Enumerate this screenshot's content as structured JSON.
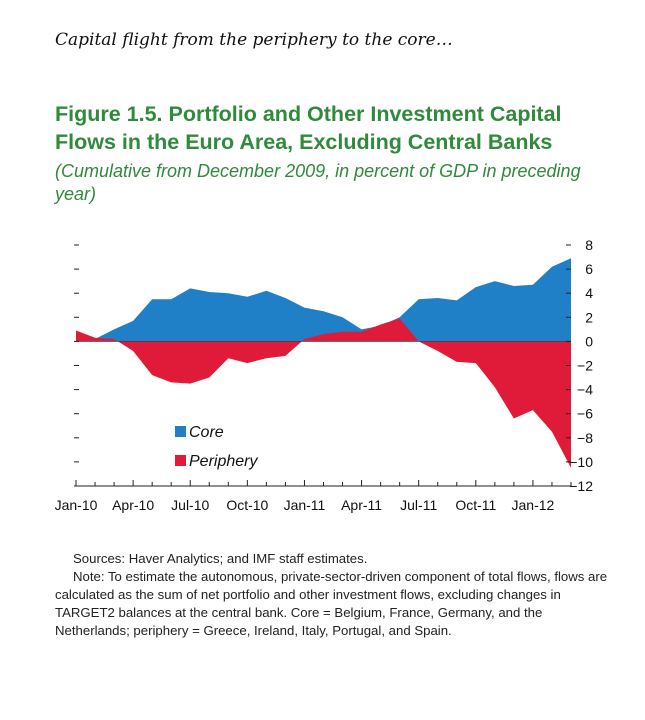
{
  "header": {
    "kicker": "Capital flight from the periphery to the core…",
    "title": "Figure 1.5. Portfolio and Other Investment Capital Flows in the Euro Area, Excluding Central Banks",
    "subtitle": "(Cumulative from December 2009, in percent of GDP in preceding year)"
  },
  "chart_data": {
    "type": "area",
    "title": "Portfolio and Other Investment Capital Flows in the Euro Area, Excluding Central Banks",
    "ylabel": "Cumulative from December 2009, in percent of GDP in preceding year",
    "ylim": [
      -12,
      8
    ],
    "yticks": [
      8,
      6,
      4,
      2,
      0,
      -2,
      -4,
      -6,
      -8,
      -10,
      -12
    ],
    "x_tick_labels": [
      "Jan-10",
      "Apr-10",
      "Jul-10",
      "Oct-10",
      "Jan-11",
      "Apr-11",
      "Jul-11",
      "Oct-11",
      "Jan-12"
    ],
    "x_tick_indices": [
      0,
      3,
      6,
      9,
      12,
      15,
      18,
      21,
      24
    ],
    "n_points": 27,
    "legend_position": "lower-left",
    "colors": {
      "core": "#1f7fc7",
      "periphery": "#e01b3a"
    },
    "series": [
      {
        "name": "Core",
        "values": [
          0.9,
          0.2,
          1.0,
          1.7,
          3.5,
          3.5,
          4.4,
          4.1,
          4.0,
          3.7,
          4.2,
          3.6,
          2.8,
          2.5,
          2.0,
          1.0,
          1.3,
          2.0,
          3.5,
          3.6,
          3.4,
          4.5,
          5.0,
          4.6,
          4.7,
          6.2,
          6.9
        ]
      },
      {
        "name": "Periphery",
        "values": [
          0.9,
          0.3,
          0.2,
          -0.8,
          -2.8,
          -3.4,
          -3.5,
          -3.0,
          -1.4,
          -1.8,
          -1.4,
          -1.2,
          0.2,
          0.6,
          0.8,
          0.8,
          1.4,
          1.9,
          0.0,
          -0.8,
          -1.7,
          -1.8,
          -3.8,
          -6.4,
          -5.7,
          -7.5,
          -10.5
        ]
      }
    ]
  },
  "notes": {
    "sources": "Sources: Haver Analytics; and IMF staff estimates.",
    "note": "Note: To estimate the autonomous, private-sector-driven component of total flows, flows are calculated as the sum of net portfolio and other investment flows, excluding changes in TARGET2 balances at the central bank.  Core = Belgium, France, Germany, and the Netherlands; periphery = Greece, Ireland, Italy, Portugal, and Spain."
  }
}
